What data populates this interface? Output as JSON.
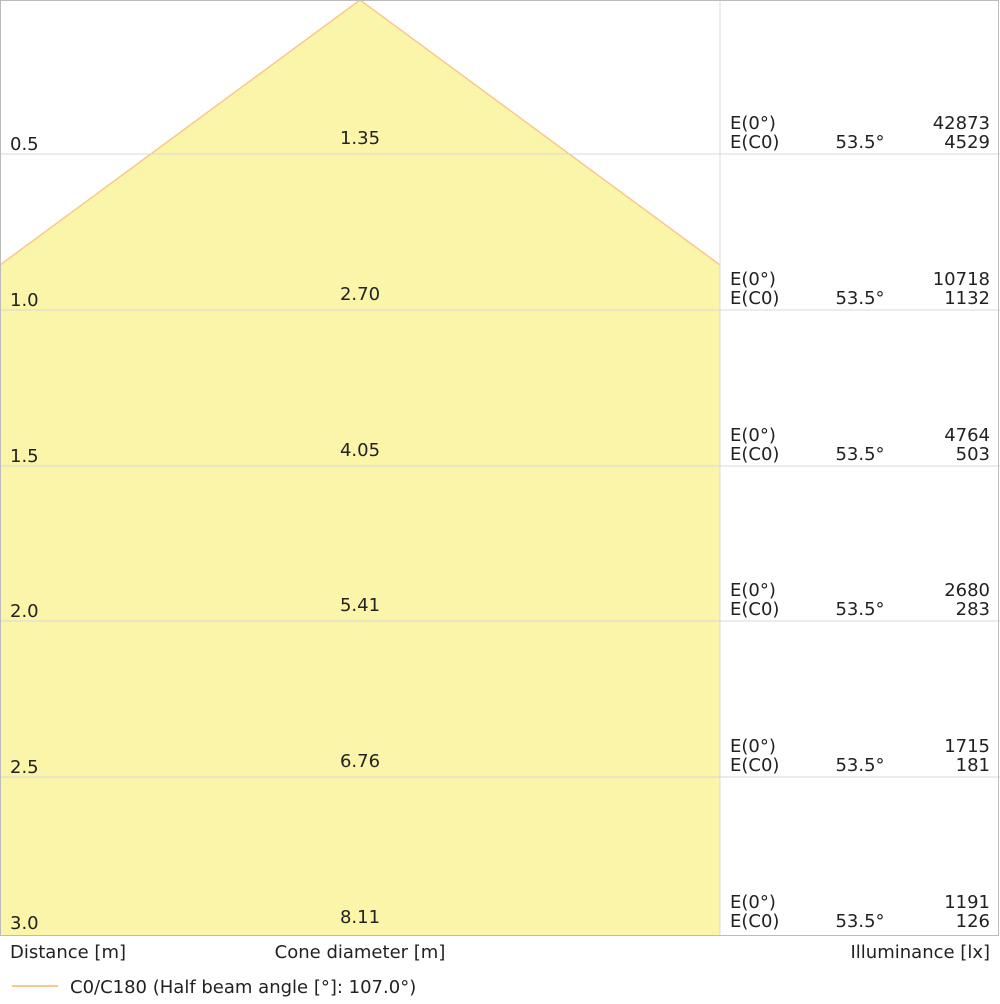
{
  "chart_data": {
    "type": "cone-diagram",
    "distance_label": "Distance [m]",
    "cone_label": "Cone diameter [m]",
    "illuminance_label": "Illuminance [lx]",
    "legend": "C0/C180 (Half beam angle [°]: 107.0°)",
    "e0_label": "E(0°)",
    "ec0_label": "E(C0)",
    "colors": {
      "cone_fill": "#fbf5aa",
      "cone_line": "#f8c98c",
      "grid": "#d8d8d8"
    },
    "rows": [
      {
        "distance": "0.5",
        "diameter": "1.35",
        "angle": "53.5°",
        "e0": "42873",
        "ec0": "4529"
      },
      {
        "distance": "1.0",
        "diameter": "2.70",
        "angle": "53.5°",
        "e0": "10718",
        "ec0": "1132"
      },
      {
        "distance": "1.5",
        "diameter": "4.05",
        "angle": "53.5°",
        "e0": "4764",
        "ec0": "503"
      },
      {
        "distance": "2.0",
        "diameter": "5.41",
        "angle": "53.5°",
        "e0": "2680",
        "ec0": "283"
      },
      {
        "distance": "2.5",
        "diameter": "6.76",
        "angle": "53.5°",
        "e0": "1715",
        "ec0": "181"
      },
      {
        "distance": "3.0",
        "diameter": "8.11",
        "angle": "53.5°",
        "e0": "1191",
        "ec0": "126"
      }
    ]
  }
}
